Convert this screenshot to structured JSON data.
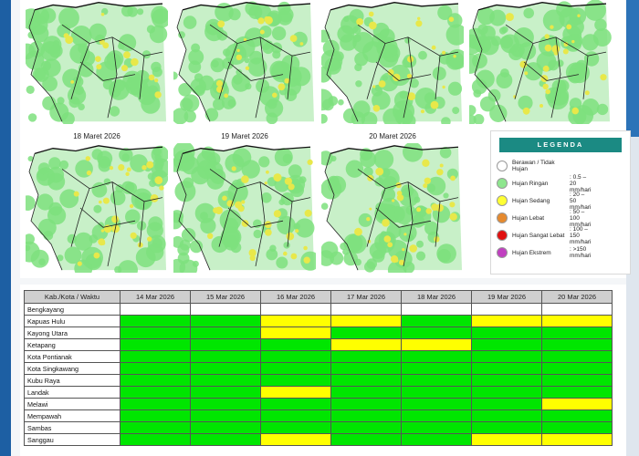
{
  "colors": {
    "green": "#00e600",
    "yellow": "#ffff00",
    "orange": "#e67e22",
    "red": "#e01010",
    "magenta": "#c040c0",
    "teal": "#1b8a83"
  },
  "maps": {
    "bottom_titles": [
      "18 Maret 2026",
      "19 Maret 2026",
      "20 Maret 2026"
    ]
  },
  "legend": {
    "title": "LEGENDA",
    "items": [
      {
        "label": "Berawan / Tidak Hujan",
        "range": "",
        "color": "#ffffff"
      },
      {
        "label": "Hujan Ringan",
        "range": ": 0.5 – 20 mm/hari",
        "color": "#8ee68e"
      },
      {
        "label": "Hujan Sedang",
        "range": ": 20 – 50 mm/hari",
        "color": "#ffff33"
      },
      {
        "label": "Hujan Lebat",
        "range": ": 50 – 100 mm/hari",
        "color": "#e68a2e"
      },
      {
        "label": "Hujan Sangat Lebat",
        "range": ": 100 – 150 mm/hari",
        "color": "#e01010"
      },
      {
        "label": "Hujan Ekstrem",
        "range": ": >150 mm/hari",
        "color": "#c040c0"
      }
    ]
  },
  "table": {
    "header": "Kab./Kota / Waktu",
    "dates": [
      "14 Mar 2026",
      "15 Mar 2026",
      "16 Mar 2026",
      "17 Mar 2026",
      "18 Mar 2026",
      "19 Mar 2026",
      "20 Mar 2026"
    ],
    "rows": [
      {
        "name": "Bengkayang",
        "cells": [
          "",
          "",
          "",
          "",
          "",
          "",
          ""
        ]
      },
      {
        "name": "Kapuas Hulu",
        "cells": [
          "G",
          "G",
          "Y",
          "Y",
          "G",
          "Y",
          "Y"
        ]
      },
      {
        "name": "Kayong Utara",
        "cells": [
          "G",
          "G",
          "Y",
          "G",
          "G",
          "G",
          "G"
        ]
      },
      {
        "name": "Ketapang",
        "cells": [
          "G",
          "G",
          "G",
          "Y",
          "Y",
          "G",
          "G"
        ]
      },
      {
        "name": "Kota Pontianak",
        "cells": [
          "G",
          "G",
          "G",
          "G",
          "G",
          "G",
          "G"
        ]
      },
      {
        "name": "Kota Singkawang",
        "cells": [
          "G",
          "G",
          "G",
          "G",
          "G",
          "G",
          "G"
        ]
      },
      {
        "name": "Kubu Raya",
        "cells": [
          "G",
          "G",
          "G",
          "G",
          "G",
          "G",
          "G"
        ]
      },
      {
        "name": "Landak",
        "cells": [
          "G",
          "G",
          "Y",
          "G",
          "G",
          "G",
          "G"
        ]
      },
      {
        "name": "Melawi",
        "cells": [
          "G",
          "G",
          "G",
          "G",
          "G",
          "G",
          "Y"
        ]
      },
      {
        "name": "Mempawah",
        "cells": [
          "G",
          "G",
          "G",
          "G",
          "G",
          "G",
          "G"
        ]
      },
      {
        "name": "Sambas",
        "cells": [
          "G",
          "G",
          "G",
          "G",
          "G",
          "G",
          "G"
        ]
      },
      {
        "name": "Sanggau",
        "cells": [
          "G",
          "G",
          "Y",
          "G",
          "G",
          "Y",
          "Y"
        ]
      }
    ]
  }
}
